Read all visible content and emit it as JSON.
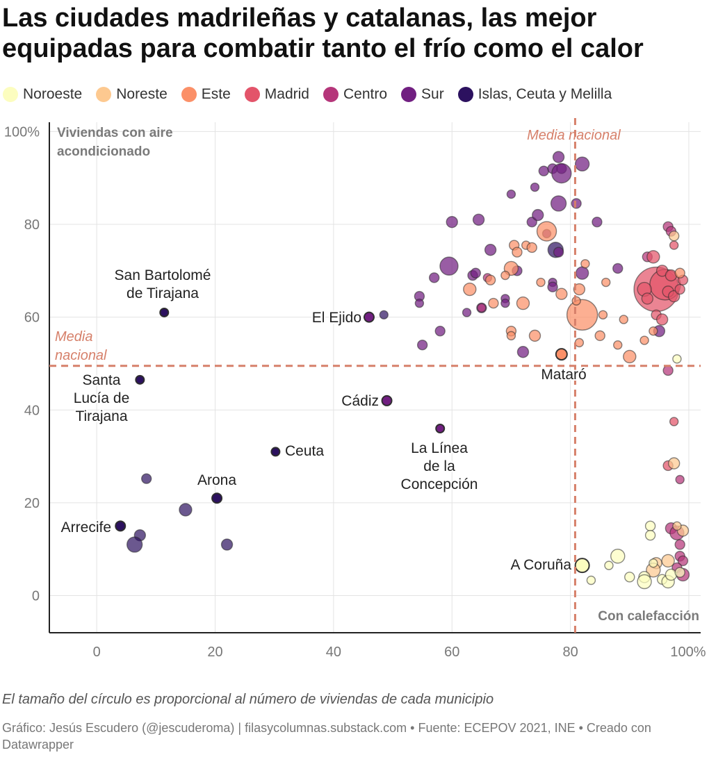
{
  "title": "Las ciudades madrileñas y catalanas, las mejor equipadas para combatir tanto el frío como el calor",
  "legend": [
    {
      "name": "Noroeste",
      "color": "#fcfdbf"
    },
    {
      "name": "Noreste",
      "color": "#fdc990"
    },
    {
      "name": "Este",
      "color": "#fb9068"
    },
    {
      "name": "Madrid",
      "color": "#e3546a"
    },
    {
      "name": "Centro",
      "color": "#b5367a"
    },
    {
      "name": "Sur",
      "color": "#711f81"
    },
    {
      "name": "Islas, Ceuta y Melilla",
      "color": "#2c115f"
    }
  ],
  "note": "El tamaño del círculo es proporcional al número de viviendas de cada municipio",
  "credit": "Gráfico: Jesús Escudero (@jescuderoma) | filasycolumnas.substack.com • Fuente: ECEPOV 2021, INE • Creado con Datawrapper",
  "chart_data": {
    "type": "scatter",
    "xlabel": "Con calefacción",
    "ylabel": "Viviendas con aire acondicionado",
    "xlim": [
      -8,
      102
    ],
    "ylim": [
      -8,
      102
    ],
    "x_ticks": [
      "0",
      "20",
      "40",
      "60",
      "80",
      "100%"
    ],
    "y_ticks": [
      "0",
      "20",
      "40",
      "60",
      "80",
      "100%"
    ],
    "x_tick_values": [
      0,
      20,
      40,
      60,
      80,
      100
    ],
    "y_tick_values": [
      0,
      20,
      40,
      60,
      80,
      100
    ],
    "grid": true,
    "reference_lines": [
      {
        "axis": "x",
        "value": 80.8,
        "label": "Media nacional",
        "color": "#d6806a"
      },
      {
        "axis": "y",
        "value": 49.5,
        "label": "Media nacional",
        "color": "#d6806a"
      }
    ],
    "labeled_points": [
      {
        "name": "San Bartolomé de Tirajana",
        "x": 11.4,
        "y": 61,
        "r": 6,
        "region": "Islas, Ceuta y Melilla"
      },
      {
        "name": "Santa Lucía de Tirajana",
        "x": 7.3,
        "y": 46.5,
        "r": 6,
        "region": "Islas, Ceuta y Melilla"
      },
      {
        "name": "Ceuta",
        "x": 30.2,
        "y": 31,
        "r": 6,
        "region": "Islas, Ceuta y Melilla"
      },
      {
        "name": "Arona",
        "x": 20.3,
        "y": 21,
        "r": 7,
        "region": "Islas, Ceuta y Melilla"
      },
      {
        "name": "Arrecife",
        "x": 4,
        "y": 15,
        "r": 7,
        "region": "Islas, Ceuta y Melilla"
      },
      {
        "name": "El Ejido",
        "x": 46,
        "y": 60,
        "r": 7,
        "region": "Sur"
      },
      {
        "name": "Cádiz",
        "x": 49,
        "y": 42,
        "r": 7,
        "region": "Sur"
      },
      {
        "name": "La Línea de la Concepción",
        "x": 58,
        "y": 36,
        "r": 6,
        "region": "Sur"
      },
      {
        "name": "Mataró",
        "x": 78.5,
        "y": 52,
        "r": 8,
        "region": "Este"
      },
      {
        "name": "A Coruña",
        "x": 82,
        "y": 6.5,
        "r": 10,
        "region": "Noroeste"
      }
    ],
    "points": [
      {
        "x": 8.4,
        "y": 25.2,
        "r": 7,
        "region": "Islas, Ceuta y Melilla"
      },
      {
        "x": 15,
        "y": 18.5,
        "r": 9,
        "region": "Islas, Ceuta y Melilla"
      },
      {
        "x": 7.3,
        "y": 13,
        "r": 8,
        "region": "Islas, Ceuta y Melilla"
      },
      {
        "x": 6.4,
        "y": 11,
        "r": 11,
        "region": "Islas, Ceuta y Melilla"
      },
      {
        "x": 22,
        "y": 11,
        "r": 8,
        "region": "Islas, Ceuta y Melilla"
      },
      {
        "x": 48.5,
        "y": 60.5,
        "r": 6,
        "region": "Islas, Ceuta y Melilla"
      },
      {
        "x": 77.5,
        "y": 74.5,
        "r": 11,
        "region": "Islas, Ceuta y Melilla"
      },
      {
        "x": 59.5,
        "y": 71,
        "r": 13,
        "region": "Sur"
      },
      {
        "x": 54.5,
        "y": 64.5,
        "r": 7,
        "region": "Sur"
      },
      {
        "x": 54.5,
        "y": 63,
        "r": 6,
        "region": "Sur"
      },
      {
        "x": 57,
        "y": 68.5,
        "r": 7,
        "region": "Sur"
      },
      {
        "x": 55,
        "y": 54,
        "r": 7,
        "region": "Sur"
      },
      {
        "x": 58,
        "y": 57,
        "r": 7,
        "region": "Sur"
      },
      {
        "x": 60,
        "y": 80.5,
        "r": 8,
        "region": "Sur"
      },
      {
        "x": 64.5,
        "y": 81,
        "r": 8,
        "region": "Sur"
      },
      {
        "x": 63.5,
        "y": 69,
        "r": 7,
        "region": "Sur"
      },
      {
        "x": 64,
        "y": 69.5,
        "r": 7,
        "region": "Sur"
      },
      {
        "x": 62.5,
        "y": 61,
        "r": 6,
        "region": "Sur"
      },
      {
        "x": 65,
        "y": 62,
        "r": 7,
        "region": "Sur"
      },
      {
        "x": 66.5,
        "y": 74.5,
        "r": 8,
        "region": "Sur"
      },
      {
        "x": 69,
        "y": 64,
        "r": 6,
        "region": "Sur"
      },
      {
        "x": 69,
        "y": 63,
        "r": 6,
        "region": "Sur"
      },
      {
        "x": 70,
        "y": 86.5,
        "r": 6,
        "region": "Sur"
      },
      {
        "x": 71,
        "y": 70,
        "r": 7,
        "region": "Sur"
      },
      {
        "x": 73.5,
        "y": 80.5,
        "r": 7,
        "region": "Sur"
      },
      {
        "x": 74,
        "y": 88,
        "r": 6,
        "region": "Sur"
      },
      {
        "x": 74.5,
        "y": 82,
        "r": 8,
        "region": "Sur"
      },
      {
        "x": 76,
        "y": 78,
        "r": 6,
        "region": "Sur"
      },
      {
        "x": 78,
        "y": 74,
        "r": 7,
        "region": "Sur"
      },
      {
        "x": 77,
        "y": 67.5,
        "r": 6,
        "region": "Sur"
      },
      {
        "x": 77,
        "y": 66.5,
        "r": 7,
        "region": "Sur"
      },
      {
        "x": 72,
        "y": 52.5,
        "r": 8,
        "region": "Sur"
      },
      {
        "x": 75.5,
        "y": 91.5,
        "r": 7,
        "region": "Sur"
      },
      {
        "x": 77,
        "y": 92,
        "r": 7,
        "region": "Sur"
      },
      {
        "x": 78,
        "y": 94.5,
        "r": 8,
        "region": "Sur"
      },
      {
        "x": 78.5,
        "y": 92,
        "r": 7,
        "region": "Sur"
      },
      {
        "x": 78.5,
        "y": 91,
        "r": 14,
        "region": "Sur"
      },
      {
        "x": 78,
        "y": 84.5,
        "r": 11,
        "region": "Sur"
      },
      {
        "x": 81,
        "y": 84.5,
        "r": 7,
        "region": "Sur"
      },
      {
        "x": 82,
        "y": 93,
        "r": 10,
        "region": "Sur"
      },
      {
        "x": 84.5,
        "y": 80.5,
        "r": 7,
        "region": "Sur"
      },
      {
        "x": 82,
        "y": 69.5,
        "r": 9,
        "region": "Sur"
      },
      {
        "x": 88,
        "y": 70.5,
        "r": 7,
        "region": "Sur"
      },
      {
        "x": 95,
        "y": 57,
        "r": 8,
        "region": "Sur"
      },
      {
        "x": 66,
        "y": 68.5,
        "r": 6,
        "region": "Centro"
      },
      {
        "x": 65,
        "y": 62,
        "r": 6,
        "region": "Centro"
      },
      {
        "x": 93,
        "y": 73,
        "r": 7,
        "region": "Centro"
      },
      {
        "x": 96.5,
        "y": 79.5,
        "r": 7,
        "region": "Centro"
      },
      {
        "x": 97,
        "y": 78.5,
        "r": 7,
        "region": "Centro"
      },
      {
        "x": 96.5,
        "y": 48.5,
        "r": 7,
        "region": "Centro"
      },
      {
        "x": 97,
        "y": 14.5,
        "r": 8,
        "region": "Centro"
      },
      {
        "x": 98,
        "y": 13.5,
        "r": 10,
        "region": "Centro"
      },
      {
        "x": 98.5,
        "y": 11,
        "r": 7,
        "region": "Centro"
      },
      {
        "x": 98.5,
        "y": 8.5,
        "r": 7,
        "region": "Centro"
      },
      {
        "x": 99,
        "y": 7.5,
        "r": 7,
        "region": "Centro"
      },
      {
        "x": 98,
        "y": 6,
        "r": 7,
        "region": "Centro"
      },
      {
        "x": 99,
        "y": 4.5,
        "r": 9,
        "region": "Centro"
      },
      {
        "x": 98.5,
        "y": 25,
        "r": 6,
        "region": "Centro"
      },
      {
        "x": 94.5,
        "y": 66,
        "r": 32,
        "region": "Madrid"
      },
      {
        "x": 96,
        "y": 67,
        "r": 22,
        "region": "Madrid"
      },
      {
        "x": 92.5,
        "y": 66,
        "r": 10,
        "region": "Madrid"
      },
      {
        "x": 93,
        "y": 64,
        "r": 8,
        "region": "Madrid"
      },
      {
        "x": 94,
        "y": 73,
        "r": 9,
        "region": "Madrid"
      },
      {
        "x": 95.5,
        "y": 70,
        "r": 8,
        "region": "Madrid"
      },
      {
        "x": 97,
        "y": 69,
        "r": 8,
        "region": "Madrid"
      },
      {
        "x": 96.5,
        "y": 65.5,
        "r": 8,
        "region": "Madrid"
      },
      {
        "x": 97.5,
        "y": 64.5,
        "r": 8,
        "region": "Madrid"
      },
      {
        "x": 98.5,
        "y": 66,
        "r": 7,
        "region": "Madrid"
      },
      {
        "x": 94.5,
        "y": 60.5,
        "r": 7,
        "region": "Madrid"
      },
      {
        "x": 95.5,
        "y": 59.5,
        "r": 8,
        "region": "Madrid"
      },
      {
        "x": 97.5,
        "y": 75.5,
        "r": 6,
        "region": "Madrid"
      },
      {
        "x": 96.5,
        "y": 28,
        "r": 7,
        "region": "Madrid"
      },
      {
        "x": 97.5,
        "y": 37.5,
        "r": 6,
        "region": "Madrid"
      },
      {
        "x": 99,
        "y": 68,
        "r": 7,
        "region": "Madrid"
      },
      {
        "x": 76,
        "y": 78.5,
        "r": 14,
        "region": "Este"
      },
      {
        "x": 82,
        "y": 60.5,
        "r": 22,
        "region": "Este"
      },
      {
        "x": 70,
        "y": 70.5,
        "r": 10,
        "region": "Este"
      },
      {
        "x": 70.5,
        "y": 75.5,
        "r": 7,
        "region": "Este"
      },
      {
        "x": 71,
        "y": 74,
        "r": 7,
        "region": "Este"
      },
      {
        "x": 72.5,
        "y": 75.5,
        "r": 6,
        "region": "Este"
      },
      {
        "x": 73.5,
        "y": 75,
        "r": 7,
        "region": "Este"
      },
      {
        "x": 66.5,
        "y": 68,
        "r": 7,
        "region": "Este"
      },
      {
        "x": 63,
        "y": 66,
        "r": 9,
        "region": "Este"
      },
      {
        "x": 67,
        "y": 63,
        "r": 7,
        "region": "Este"
      },
      {
        "x": 69,
        "y": 69,
        "r": 6,
        "region": "Este"
      },
      {
        "x": 72,
        "y": 63,
        "r": 9,
        "region": "Este"
      },
      {
        "x": 70,
        "y": 57,
        "r": 7,
        "region": "Este"
      },
      {
        "x": 70,
        "y": 56,
        "r": 6,
        "region": "Este"
      },
      {
        "x": 74,
        "y": 56,
        "r": 8,
        "region": "Este"
      },
      {
        "x": 75,
        "y": 67.5,
        "r": 6,
        "region": "Este"
      },
      {
        "x": 78.5,
        "y": 65,
        "r": 8,
        "region": "Este"
      },
      {
        "x": 81,
        "y": 63.5,
        "r": 6,
        "region": "Este"
      },
      {
        "x": 81.5,
        "y": 66,
        "r": 8,
        "region": "Este"
      },
      {
        "x": 82.5,
        "y": 71.5,
        "r": 6,
        "region": "Este"
      },
      {
        "x": 81.5,
        "y": 54.5,
        "r": 6,
        "region": "Este"
      },
      {
        "x": 85,
        "y": 56,
        "r": 7,
        "region": "Este"
      },
      {
        "x": 85.5,
        "y": 60.5,
        "r": 6,
        "region": "Este"
      },
      {
        "x": 86,
        "y": 67.5,
        "r": 6,
        "region": "Este"
      },
      {
        "x": 88,
        "y": 54,
        "r": 6,
        "region": "Este"
      },
      {
        "x": 89,
        "y": 59.5,
        "r": 6,
        "region": "Este"
      },
      {
        "x": 90,
        "y": 51.5,
        "r": 9,
        "region": "Este"
      },
      {
        "x": 92.5,
        "y": 55,
        "r": 6,
        "region": "Este"
      },
      {
        "x": 94,
        "y": 57,
        "r": 6,
        "region": "Este"
      },
      {
        "x": 98.5,
        "y": 69.5,
        "r": 7,
        "region": "Este"
      },
      {
        "x": 97.5,
        "y": 77.5,
        "r": 7,
        "region": "Noreste"
      },
      {
        "x": 97.5,
        "y": 28.5,
        "r": 8,
        "region": "Noreste"
      },
      {
        "x": 99,
        "y": 14,
        "r": 8,
        "region": "Noreste"
      },
      {
        "x": 98,
        "y": 15,
        "r": 6,
        "region": "Noreste"
      },
      {
        "x": 94.5,
        "y": 7,
        "r": 8,
        "region": "Noreste"
      },
      {
        "x": 96.5,
        "y": 7.5,
        "r": 9,
        "region": "Noreste"
      },
      {
        "x": 94,
        "y": 5.5,
        "r": 10,
        "region": "Noreste"
      },
      {
        "x": 98,
        "y": 51,
        "r": 6,
        "region": "Noroeste"
      },
      {
        "x": 93.5,
        "y": 15,
        "r": 7,
        "region": "Noroeste"
      },
      {
        "x": 93.5,
        "y": 13,
        "r": 7,
        "region": "Noroeste"
      },
      {
        "x": 88,
        "y": 8.5,
        "r": 10,
        "region": "Noroeste"
      },
      {
        "x": 86.5,
        "y": 6.5,
        "r": 6,
        "region": "Noroeste"
      },
      {
        "x": 83.5,
        "y": 3.3,
        "r": 6,
        "region": "Noroeste"
      },
      {
        "x": 90,
        "y": 4,
        "r": 7,
        "region": "Noroeste"
      },
      {
        "x": 92.5,
        "y": 4,
        "r": 8,
        "region": "Noroeste"
      },
      {
        "x": 92.5,
        "y": 3,
        "r": 10,
        "region": "Noroeste"
      },
      {
        "x": 94,
        "y": 7,
        "r": 6,
        "region": "Noroeste"
      },
      {
        "x": 95.5,
        "y": 3.5,
        "r": 7,
        "region": "Noroeste"
      },
      {
        "x": 96.5,
        "y": 3,
        "r": 9,
        "region": "Noroeste"
      },
      {
        "x": 97,
        "y": 4.5,
        "r": 8,
        "region": "Noroeste"
      },
      {
        "x": 98.5,
        "y": 5,
        "r": 7,
        "region": "Noroeste"
      }
    ]
  }
}
